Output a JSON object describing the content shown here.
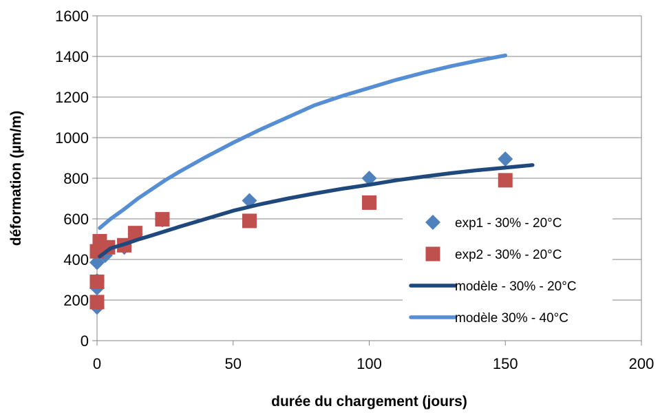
{
  "chart_data": {
    "type": "scatter",
    "title": "",
    "xlabel": "durée du chargement (jours)",
    "ylabel": "déformation (µm/m)",
    "xlim": [
      0,
      200
    ],
    "ylim": [
      0,
      1600
    ],
    "xticks": [
      0,
      50,
      100,
      150,
      200
    ],
    "yticks": [
      0,
      200,
      400,
      600,
      800,
      1000,
      1200,
      1400,
      1600
    ],
    "grid": "horizontal",
    "legend_position": "right",
    "series": [
      {
        "name": "exp1 - 30% - 20°C",
        "kind": "markers",
        "marker": "diamond",
        "color": "#4F81BD",
        "x": [
          0,
          0,
          0,
          0,
          1,
          3,
          10,
          14,
          24,
          56,
          100,
          150
        ],
        "y": [
          165,
          260,
          295,
          385,
          450,
          420,
          460,
          525,
          595,
          690,
          800,
          895
        ]
      },
      {
        "name": "exp2 - 30% - 20°C",
        "kind": "markers",
        "marker": "square",
        "color": "#C0504D",
        "x": [
          0,
          0,
          0,
          1,
          4,
          10,
          14,
          24,
          56,
          100,
          150
        ],
        "y": [
          190,
          290,
          440,
          490,
          460,
          470,
          530,
          598,
          590,
          680,
          790
        ]
      },
      {
        "name": "modèle - 30% - 20°C",
        "kind": "line",
        "color": "#1F497D",
        "x": [
          1,
          5,
          10,
          15,
          20,
          30,
          40,
          50,
          60,
          70,
          80,
          90,
          100,
          110,
          120,
          130,
          140,
          150,
          160
        ],
        "y": [
          415,
          455,
          475,
          498,
          518,
          560,
          600,
          640,
          672,
          700,
          725,
          748,
          768,
          790,
          808,
          825,
          840,
          852,
          865
        ]
      },
      {
        "name": "modèle 30% - 40°C",
        "kind": "line",
        "color": "#558ED5",
        "x": [
          1,
          5,
          10,
          15,
          20,
          25,
          30,
          40,
          50,
          60,
          70,
          80,
          90,
          100,
          110,
          120,
          130,
          140,
          150
        ],
        "y": [
          555,
          600,
          648,
          700,
          745,
          790,
          830,
          905,
          975,
          1040,
          1100,
          1160,
          1205,
          1245,
          1285,
          1320,
          1352,
          1380,
          1405
        ]
      }
    ]
  }
}
